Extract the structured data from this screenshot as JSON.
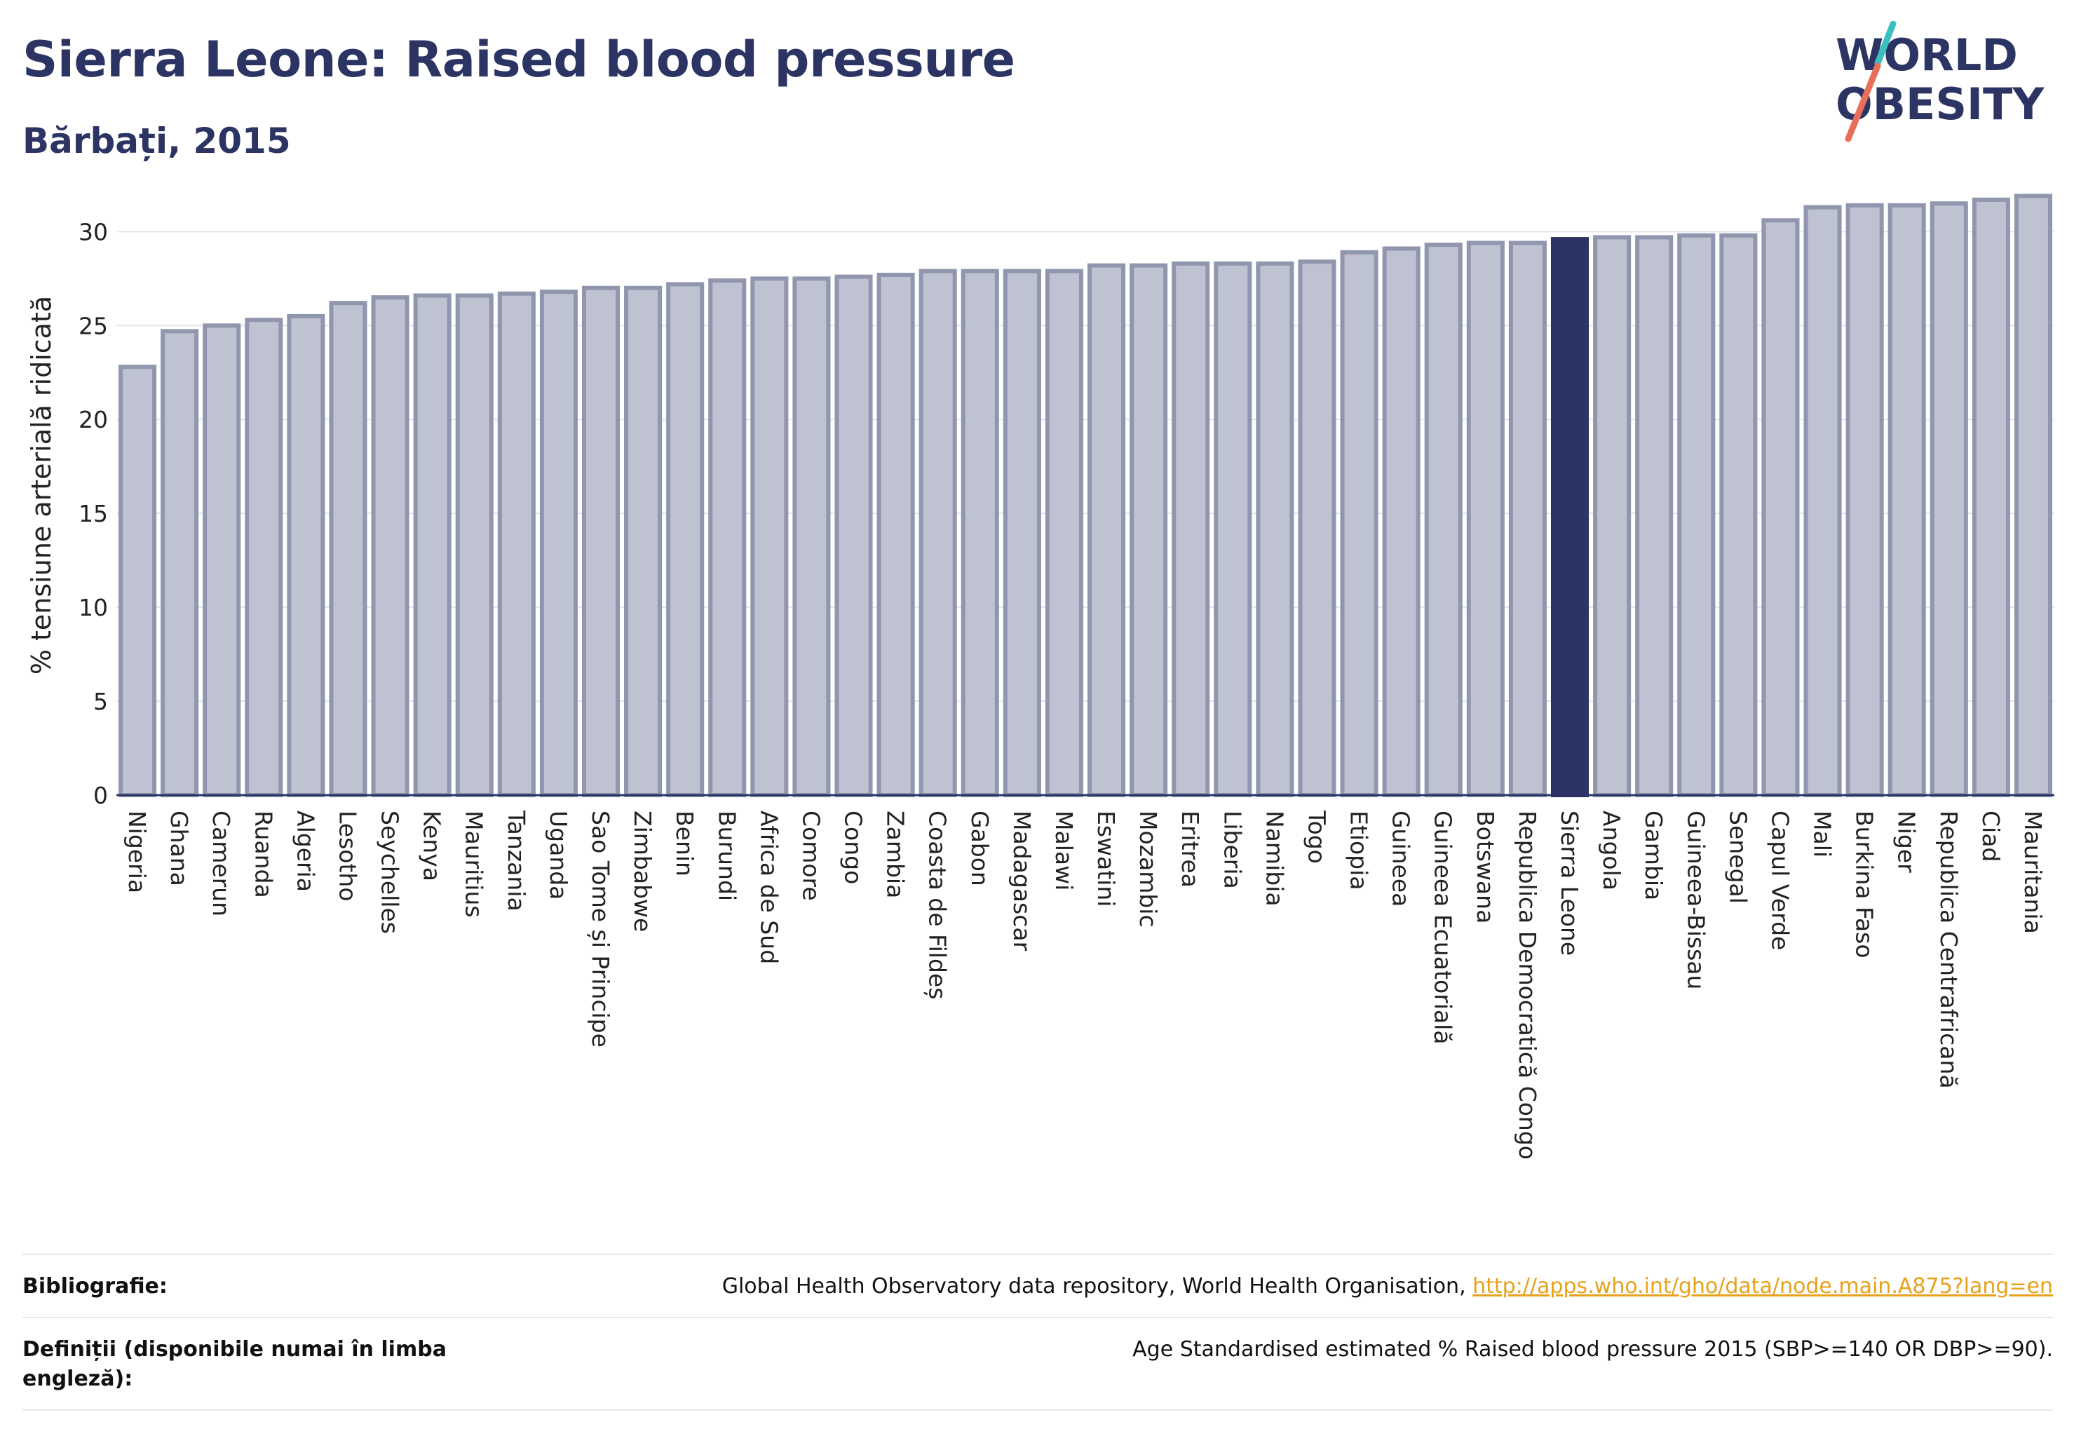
{
  "header": {
    "title": "Sierra Leone: Raised blood pressure",
    "subtitle": "Bărbați, 2015"
  },
  "logo": {
    "line1": "WORLD",
    "line2": "OBESITY",
    "accent": "#3bbfbf",
    "accent2": "#e8705a"
  },
  "colors": {
    "bar": "#bfc2d0",
    "bar_border": "#9096ad",
    "highlight": "#2b3463"
  },
  "chart_data": {
    "type": "bar",
    "ylabel": "% tensiune arterială ridicată",
    "xlabel": "",
    "ylim": [
      0,
      33
    ],
    "yticks": [
      0,
      5,
      10,
      15,
      20,
      25,
      30
    ],
    "grid": true,
    "highlight": "Sierra Leone",
    "categories": [
      "Nigeria",
      "Ghana",
      "Camerun",
      "Ruanda",
      "Algeria",
      "Lesotho",
      "Seychelles",
      "Kenya",
      "Mauritius",
      "Tanzania",
      "Uganda",
      "Sao Tome și Principe",
      "Zimbabwe",
      "Benin",
      "Burundi",
      "Africa de Sud",
      "Comore",
      "Congo",
      "Zambia",
      "Coasta de Fildeș",
      "Gabon",
      "Madagascar",
      "Malawi",
      "Eswatini",
      "Mozambic",
      "Eritrea",
      "Liberia",
      "Namibia",
      "Togo",
      "Etiopia",
      "Guineea",
      "Guineea Ecuatorială",
      "Botswana",
      "Republica Democratică Congo",
      "Sierra Leone",
      "Angola",
      "Gambia",
      "Guineea-Bissau",
      "Senegal",
      "Capul Verde",
      "Mali",
      "Burkina Faso",
      "Niger",
      "Republica Centrafricană",
      "Ciad",
      "Mauritania"
    ],
    "values": [
      22.8,
      24.7,
      25.0,
      25.3,
      25.5,
      26.2,
      26.5,
      26.6,
      26.6,
      26.7,
      26.8,
      27.0,
      27.0,
      27.2,
      27.4,
      27.5,
      27.5,
      27.6,
      27.7,
      27.9,
      27.9,
      27.9,
      27.9,
      28.2,
      28.2,
      28.3,
      28.3,
      28.3,
      28.4,
      28.9,
      29.1,
      29.3,
      29.4,
      29.4,
      29.6,
      29.7,
      29.7,
      29.8,
      29.8,
      30.6,
      31.3,
      31.4,
      31.4,
      31.5,
      31.7,
      31.9
    ]
  },
  "footer": {
    "bibliography_label": "Bibliografie:",
    "bibliography_text": "Global Health Observatory data repository, World Health Organisation, ",
    "bibliography_link": "http://apps.who.int/gho/data/node.main.A875?lang=en",
    "definitions_label": "Definiții (disponibile numai în limba engleză):",
    "definitions_text": "Age Standardised estimated % Raised blood pressure 2015 (SBP>=140 OR DBP>=90)."
  }
}
